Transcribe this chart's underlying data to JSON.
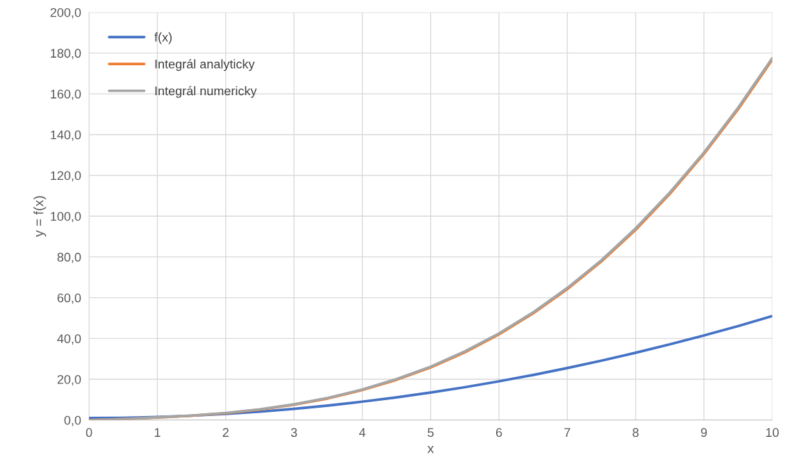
{
  "chart_data": {
    "type": "line",
    "xlabel": "x",
    "ylabel": "y = f(x)",
    "x": [
      0,
      0.5,
      1,
      1.5,
      2,
      2.5,
      3,
      3.5,
      4,
      4.5,
      5,
      5.5,
      6,
      6.5,
      7,
      7.5,
      8,
      8.5,
      9,
      9.5,
      10
    ],
    "series": [
      {
        "name": "f(x)",
        "color": "#4472c4",
        "values": [
          1,
          1.1,
          1.5,
          2.1,
          3,
          4.1,
          5.5,
          7.1,
          9,
          11.1,
          13.5,
          16.1,
          19,
          22.1,
          25.5,
          29.1,
          33,
          37.1,
          41.5,
          46.1,
          51
        ]
      },
      {
        "name": "Integrál analyticky",
        "color": "#ed7d31",
        "values": [
          0,
          0.5,
          1.2,
          2.1,
          3.3,
          5.1,
          7.5,
          10.6,
          14.7,
          19.7,
          25.8,
          33.2,
          42,
          52.3,
          64.2,
          77.8,
          93.3,
          110.9,
          130.5,
          152.4,
          176.7
        ]
      },
      {
        "name": "Integrál numericky",
        "color": "#a5a5a5",
        "values": [
          0,
          0.5,
          1.3,
          2.2,
          3.5,
          5.3,
          7.7,
          10.9,
          15,
          20.1,
          26.2,
          33.7,
          42.5,
          52.8,
          64.8,
          78.4,
          94,
          111.6,
          131.2,
          153.2,
          177.5
        ]
      }
    ],
    "xlim": [
      0,
      10
    ],
    "xticks": [
      0,
      1,
      2,
      3,
      4,
      5,
      6,
      7,
      8,
      9,
      10
    ],
    "ylim": [
      0,
      200
    ],
    "yticks": [
      {
        "value": 0,
        "label": "0,0"
      },
      {
        "value": 20,
        "label": "20,0"
      },
      {
        "value": 40,
        "label": "40,0"
      },
      {
        "value": 60,
        "label": "60,0"
      },
      {
        "value": 80,
        "label": "80,0"
      },
      {
        "value": 100,
        "label": "100,0"
      },
      {
        "value": 120,
        "label": "120,0"
      },
      {
        "value": 140,
        "label": "140,0"
      },
      {
        "value": 160,
        "label": "160,0"
      },
      {
        "value": 180,
        "label": "180,0"
      },
      {
        "value": 200,
        "label": "200,0"
      }
    ],
    "grid": true,
    "legend": "top left",
    "marker": "none",
    "line_style": "solid"
  }
}
